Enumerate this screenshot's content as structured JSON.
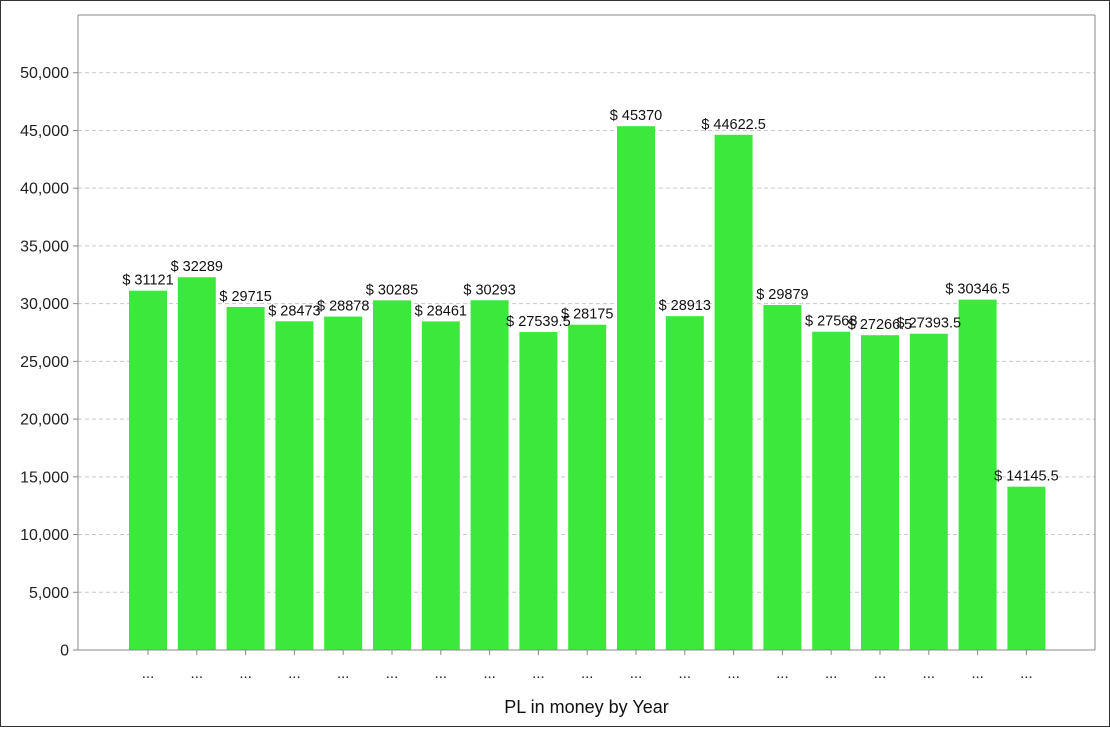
{
  "chart_data": {
    "type": "bar",
    "categories": [
      "...",
      "...",
      "...",
      "...",
      "...",
      "...",
      "...",
      "...",
      "...",
      "...",
      "...",
      "...",
      "...",
      "...",
      "...",
      "...",
      "...",
      "...",
      "..."
    ],
    "values": [
      31121,
      32289,
      29715,
      28473,
      28878,
      30285,
      28461,
      30293,
      27539.5,
      28175,
      45370,
      28913,
      44622.5,
      29879,
      27568,
      27266.5,
      27393.5,
      30346.5,
      14145.5
    ],
    "data_labels": [
      "$ 31121",
      "$ 32289",
      "$ 29715",
      "$ 28473",
      "$ 28878",
      "$ 30285",
      "$ 28461",
      "$ 30293",
      "$ 27539.5",
      "$ 28175",
      "$ 45370",
      "$ 28913",
      "$ 44622.5",
      "$ 29879",
      "$ 27568",
      "$ 27266.5",
      "$ 27393.5",
      "$ 30346.5",
      "$ 14145.5"
    ],
    "title": "",
    "xlabel": "PL in money by Year",
    "ylabel": "",
    "ylim": [
      0,
      55000
    ],
    "yticks": [
      0,
      5000,
      10000,
      15000,
      20000,
      25000,
      30000,
      35000,
      40000,
      45000,
      50000
    ],
    "ytick_labels": [
      "0",
      "5,000",
      "10,000",
      "15,000",
      "20,000",
      "25,000",
      "30,000",
      "35,000",
      "40,000",
      "45,000",
      "50,000"
    ],
    "grid": true,
    "legend": "none",
    "bar_color": "#3de83d"
  }
}
